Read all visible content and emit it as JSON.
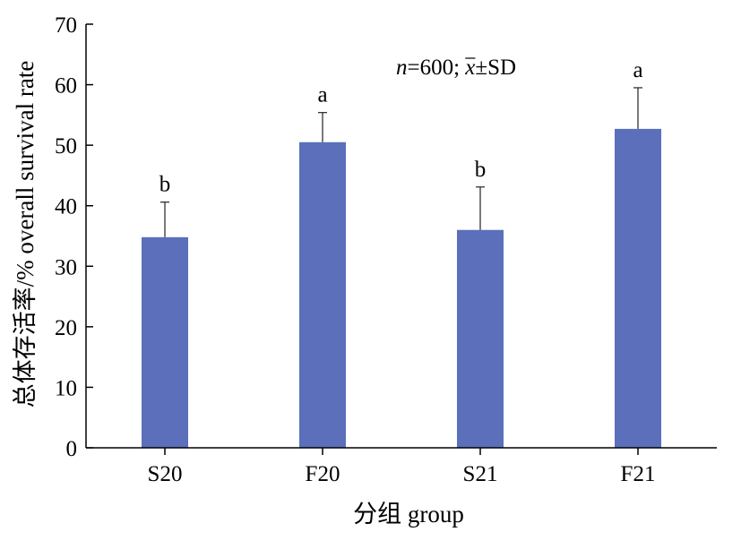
{
  "chart_data": {
    "type": "bar",
    "title": "",
    "xlabel": "分组 group",
    "ylabel": "总体存活率/% overall survival rate",
    "categories": [
      "S20",
      "F20",
      "S21",
      "F21"
    ],
    "values": [
      34.8,
      50.5,
      36.0,
      52.7
    ],
    "errors": [
      5.8,
      4.9,
      7.1,
      6.8
    ],
    "significance": [
      "b",
      "a",
      "b",
      "a"
    ],
    "ylim": [
      0,
      70
    ],
    "yticks": [
      "0",
      "10",
      "20",
      "30",
      "40",
      "50",
      "60",
      "70"
    ],
    "annotation": {
      "n_italic": "n",
      "n_value": "=600; ",
      "x_italic": "x",
      "pm_sd": "±SD"
    },
    "bar_color": "#5B6FBA",
    "grid": false,
    "legend": "none"
  }
}
